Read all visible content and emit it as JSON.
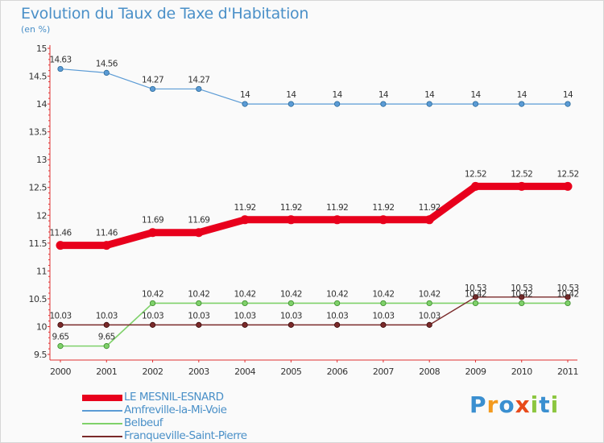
{
  "title": "Evolution du Taux de Taxe d'Habitation",
  "subtitle": "(en %)",
  "logo": "Proxiti",
  "chart_data": {
    "type": "line",
    "title": "Evolution du Taux de Taxe d'Habitation",
    "ylabel": "(en %)",
    "xlabel": "",
    "categories": [
      "2000",
      "2001",
      "2002",
      "2003",
      "2004",
      "2005",
      "2006",
      "2007",
      "2008",
      "2009",
      "2010",
      "2011"
    ],
    "ylim": [
      9.5,
      15
    ],
    "yticks": [
      "9.5",
      "10",
      "10.5",
      "11",
      "11.5",
      "12",
      "12.5",
      "13",
      "13.5",
      "14",
      "14.5",
      "15"
    ],
    "grid": false,
    "legend_position": "bottom-left",
    "series": [
      {
        "name": "Amfreville-la-Mi-Voie",
        "color": "#5b9bd5",
        "values": [
          14.63,
          14.56,
          14.27,
          14.27,
          14,
          14,
          14,
          14,
          14,
          14,
          14,
          14
        ],
        "labels": [
          "14.63",
          "14.56",
          "14.27",
          "14.27",
          "14",
          "14",
          "14",
          "14",
          "14",
          "14",
          "14",
          "14"
        ]
      },
      {
        "name": "Belbeuf",
        "color": "#7fd16a",
        "values": [
          9.65,
          9.65,
          10.42,
          10.42,
          10.42,
          10.42,
          10.42,
          10.42,
          10.42,
          10.42,
          10.42,
          10.42
        ],
        "labels": [
          "9.65",
          "9.65",
          "10.42",
          "10.42",
          "10.42",
          "10.42",
          "10.42",
          "10.42",
          "10.42",
          "10.42",
          "10.42",
          "10.42"
        ]
      },
      {
        "name": "Franqueville-Saint-Pierre",
        "color": "#7a2a2a",
        "values": [
          10.03,
          10.03,
          10.03,
          10.03,
          10.03,
          10.03,
          10.03,
          10.03,
          10.03,
          10.53,
          10.53,
          10.53
        ],
        "labels": [
          "10.03",
          "10.03",
          "10.03",
          "10.03",
          "10.03",
          "10.03",
          "10.03",
          "10.03",
          "10.03",
          "10.53",
          "10.53",
          "10.53"
        ]
      },
      {
        "name": "LE MESNIL-ESNARD",
        "color": "#e8001c",
        "values": [
          11.46,
          11.46,
          11.69,
          11.69,
          11.92,
          11.92,
          11.92,
          11.92,
          11.92,
          12.52,
          12.52,
          12.52
        ],
        "labels": [
          "11.46",
          "11.46",
          "11.69",
          "11.69",
          "11.92",
          "11.92",
          "11.92",
          "11.92",
          "11.92",
          "12.52",
          "12.52",
          "12.52"
        ]
      }
    ],
    "legend": [
      "LE MESNIL-ESNARD",
      "Amfreville-la-Mi-Voie",
      "Belbeuf",
      "Franqueville-Saint-Pierre"
    ]
  }
}
